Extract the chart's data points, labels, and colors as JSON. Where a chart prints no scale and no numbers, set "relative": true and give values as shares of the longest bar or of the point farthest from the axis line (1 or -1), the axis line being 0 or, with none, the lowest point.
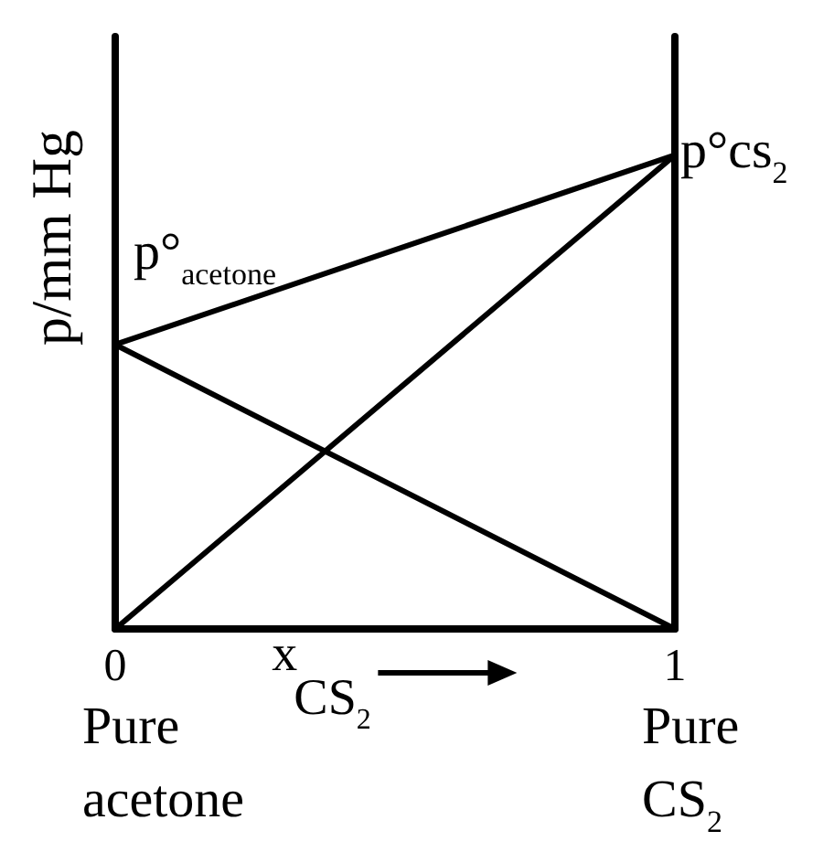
{
  "chart_data": {
    "type": "line",
    "relative": true,
    "x": [
      0,
      1
    ],
    "xlim": [
      0,
      1
    ],
    "xticks": [
      0,
      1
    ],
    "xlabel": "x CS$_{2}$",
    "ylabel": "p/mm Hg",
    "tick_labels": "x",
    "line_style": "solid",
    "series": [
      {
        "color": "#000000",
        "values": [
          0.6,
          1
        ]
      },
      {
        "color": "#000000",
        "values": [
          0.6,
          0
        ]
      },
      {
        "color": "#000000",
        "values": [
          0,
          1
        ]
      }
    ],
    "annotations": [
      {
        "text": "p°$_{acetone}$",
        "x": 0,
        "y": 0.6
      },
      {
        "text": "p°cs$_{2}$",
        "x": 1,
        "y": 1
      },
      "Pure acetone",
      "Pure CS$_{2}$"
    ]
  }
}
